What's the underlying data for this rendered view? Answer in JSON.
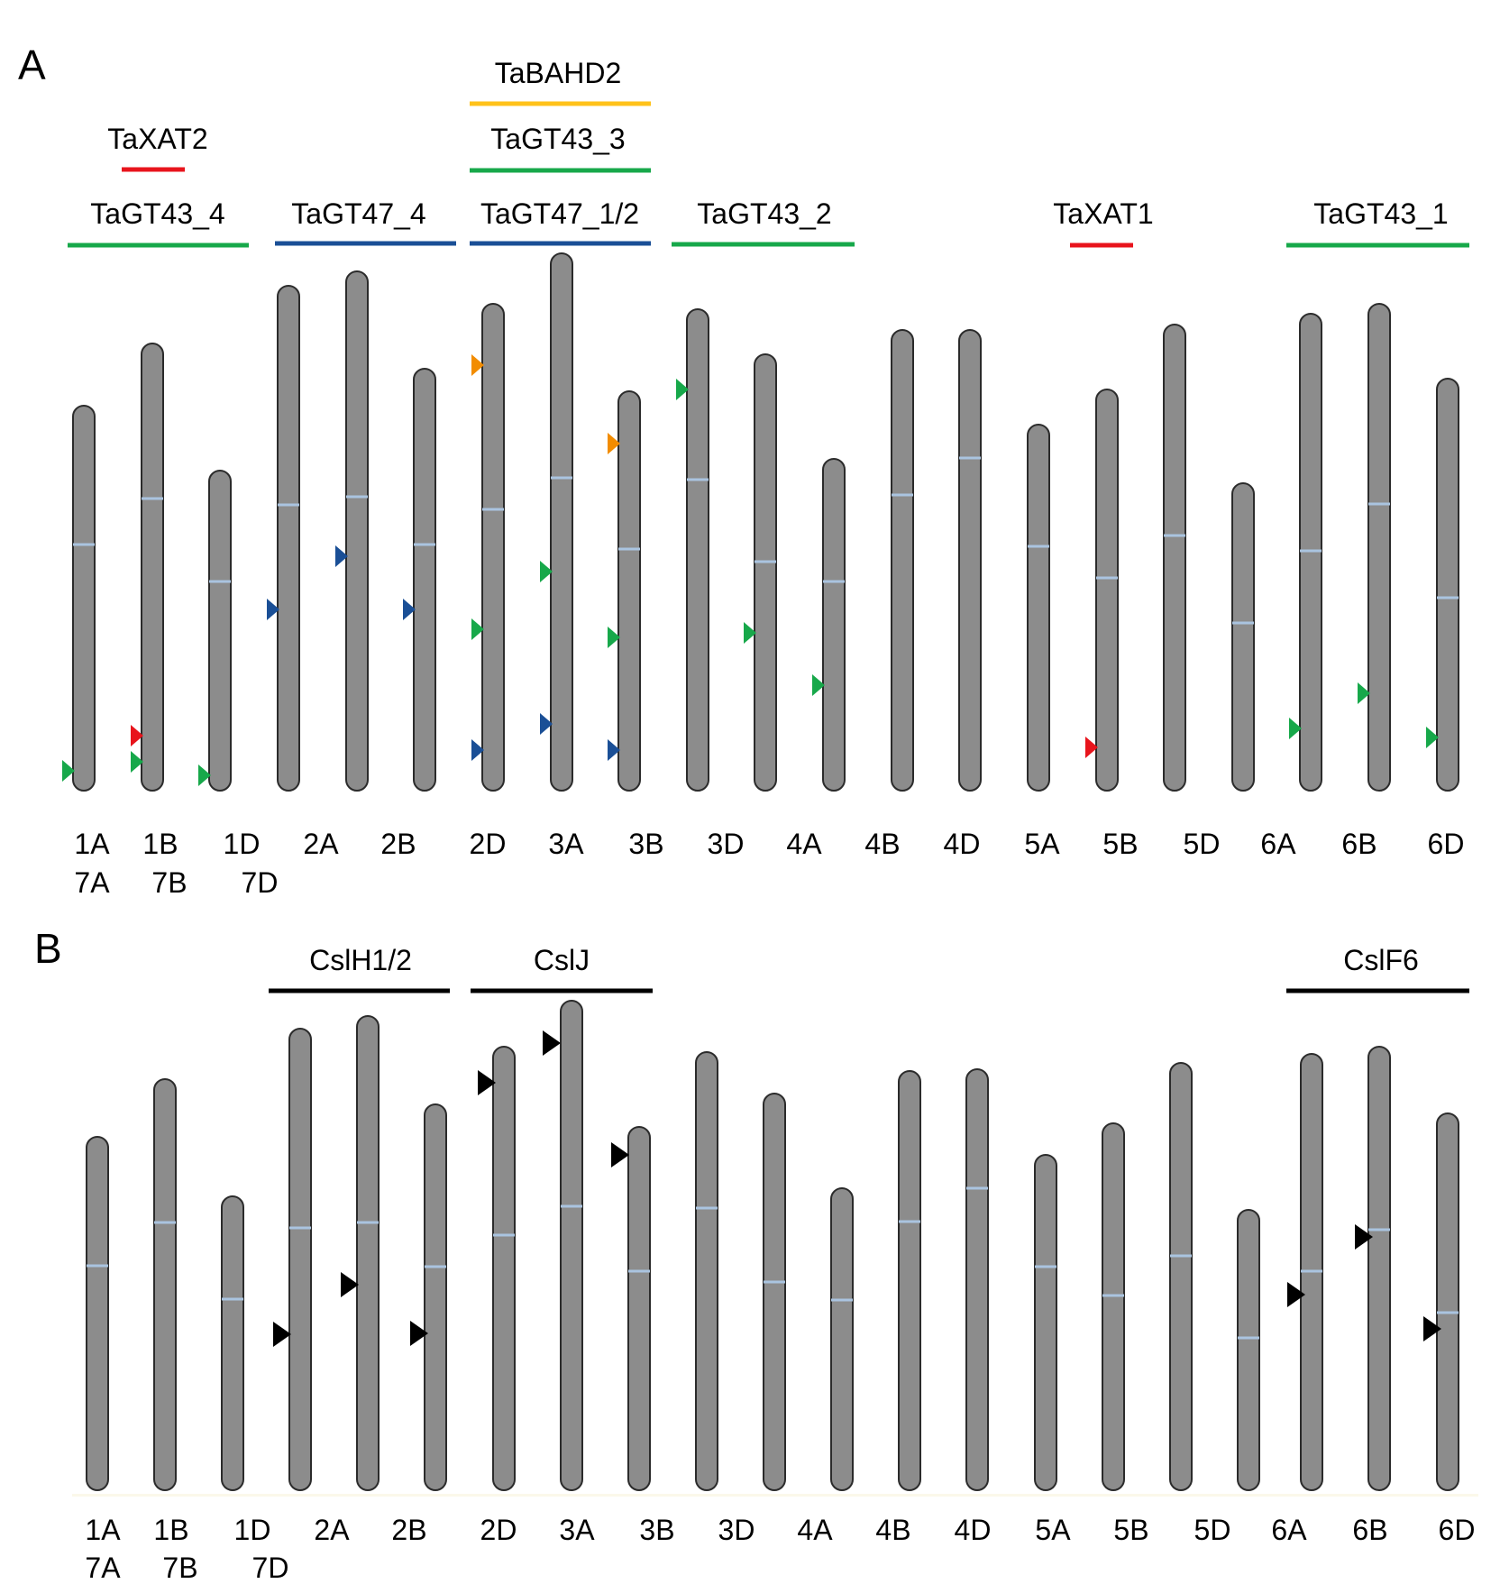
{
  "colors": {
    "chromosome_fill": "#8c8c8c",
    "chromosome_stroke": "#2b2b2b",
    "centromere": "#aac4e0",
    "gt43": "#17a84a",
    "gt47": "#1a4f96",
    "xat": "#e8141c",
    "bahd": "#ffc21a",
    "csl": "#000000"
  },
  "panels": [
    {
      "letter": "A",
      "chromosome_labels": [
        {
          "top": "1A",
          "bottom": "7A"
        },
        {
          "top": "1B",
          "bottom": "7B"
        },
        {
          "top": "1D",
          "bottom": "7D"
        },
        {
          "top": "2A"
        },
        {
          "top": "2B"
        },
        {
          "top": "2D"
        },
        {
          "top": "3A"
        },
        {
          "top": "3B"
        },
        {
          "top": "3D"
        },
        {
          "top": "4A"
        },
        {
          "top": "4B"
        },
        {
          "top": "4D"
        },
        {
          "top": "5A"
        },
        {
          "top": "5B"
        },
        {
          "top": "5D"
        },
        {
          "top": "6A"
        },
        {
          "top": "6B"
        },
        {
          "top": "6D"
        }
      ],
      "groups": [
        {
          "label": "TaXAT2",
          "color_key": "xat"
        },
        {
          "label": "TaGT43_4",
          "color_key": "gt43"
        },
        {
          "label": "TaGT47_4",
          "color_key": "gt47"
        },
        {
          "label": "TaBAHD2",
          "color_key": "bahd"
        },
        {
          "label": "TaGT43_3",
          "color_key": "gt43"
        },
        {
          "label": "TaGT47_1/2",
          "color_key": "gt47"
        },
        {
          "label": "TaGT43_2",
          "color_key": "gt43"
        },
        {
          "label": "TaXAT1",
          "color_key": "xat"
        },
        {
          "label": "TaGT43_1",
          "color_key": "gt43"
        }
      ],
      "markers": [
        {
          "chromosome": "1A",
          "color_key": "gt43"
        },
        {
          "chromosome": "1B",
          "color_key": "xat"
        },
        {
          "chromosome": "1B",
          "color_key": "gt43"
        },
        {
          "chromosome": "1D",
          "color_key": "gt43"
        },
        {
          "chromosome": "2A",
          "color_key": "gt47"
        },
        {
          "chromosome": "2B",
          "color_key": "gt47"
        },
        {
          "chromosome": "2B",
          "color_key": "gt47"
        },
        {
          "chromosome": "2D",
          "color_key": "bahd"
        },
        {
          "chromosome": "2D",
          "color_key": "gt43"
        },
        {
          "chromosome": "2D",
          "color_key": "gt47"
        },
        {
          "chromosome": "3A",
          "color_key": "gt43"
        },
        {
          "chromosome": "3A",
          "color_key": "gt47"
        },
        {
          "chromosome": "3B",
          "color_key": "bahd"
        },
        {
          "chromosome": "3B",
          "color_key": "gt43"
        },
        {
          "chromosome": "3B",
          "color_key": "gt47"
        },
        {
          "chromosome": "3D",
          "color_key": "gt43"
        },
        {
          "chromosome": "4A",
          "color_key": "gt43"
        },
        {
          "chromosome": "4A",
          "color_key": "gt43"
        },
        {
          "chromosome": "5B",
          "color_key": "xat"
        },
        {
          "chromosome": "6A",
          "color_key": "gt43"
        },
        {
          "chromosome": "6B",
          "color_key": "gt43"
        },
        {
          "chromosome": "6D",
          "color_key": "gt43"
        }
      ]
    },
    {
      "letter": "B",
      "chromosome_labels": [
        {
          "top": "1A",
          "bottom": "7A"
        },
        {
          "top": "1B",
          "bottom": "7B"
        },
        {
          "top": "1D",
          "bottom": "7D"
        },
        {
          "top": "2A"
        },
        {
          "top": "2B"
        },
        {
          "top": "2D"
        },
        {
          "top": "3A"
        },
        {
          "top": "3B"
        },
        {
          "top": "3D"
        },
        {
          "top": "4A"
        },
        {
          "top": "4B"
        },
        {
          "top": "4D"
        },
        {
          "top": "5A"
        },
        {
          "top": "5B"
        },
        {
          "top": "5D"
        },
        {
          "top": "6A"
        },
        {
          "top": "6B"
        },
        {
          "top": "6D"
        }
      ],
      "groups": [
        {
          "label": "CslH1/2",
          "color_key": "csl"
        },
        {
          "label": "CslJ",
          "color_key": "csl"
        },
        {
          "label": "CslF6",
          "color_key": "csl"
        }
      ],
      "markers": [
        {
          "chromosome": "2A",
          "color_key": "csl"
        },
        {
          "chromosome": "2B",
          "color_key": "csl"
        },
        {
          "chromosome": "2B",
          "color_key": "csl"
        },
        {
          "chromosome": "2D",
          "color_key": "csl"
        },
        {
          "chromosome": "3A",
          "color_key": "csl"
        },
        {
          "chromosome": "3B",
          "color_key": "csl"
        },
        {
          "chromosome": "6A",
          "color_key": "csl"
        },
        {
          "chromosome": "6B",
          "color_key": "csl"
        },
        {
          "chromosome": "6D",
          "color_key": "csl"
        }
      ]
    }
  ]
}
